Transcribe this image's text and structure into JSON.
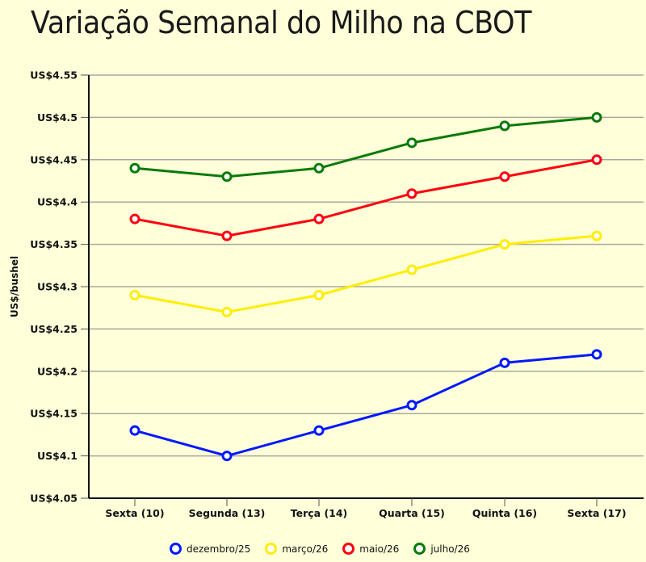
{
  "chart_data": {
    "type": "line",
    "title": "Variação Semanal do Milho na CBOT",
    "xlabel": "",
    "ylabel": "US$/bushel",
    "categories": [
      "Sexta (10)",
      "Segunda (13)",
      "Terça (14)",
      "Quarta (15)",
      "Quinta (16)",
      "Sexta (17)"
    ],
    "ylim": [
      4.05,
      4.55
    ],
    "yticks": [
      4.05,
      4.1,
      4.15,
      4.2,
      4.25,
      4.3,
      4.35,
      4.4,
      4.45,
      4.5,
      4.55
    ],
    "ytick_labels": [
      "US$4.05",
      "US$4.1",
      "US$4.15",
      "US$4.2",
      "US$4.25",
      "US$4.3",
      "US$4.35",
      "US$4.4",
      "US$4.45",
      "US$4.5",
      "US$4.55"
    ],
    "grid": true,
    "legend_position": "bottom",
    "series": [
      {
        "name": "dezembro/25",
        "color": "#0018ff",
        "values": [
          4.13,
          4.1,
          4.13,
          4.16,
          4.21,
          4.22
        ]
      },
      {
        "name": "março/26",
        "color": "#ffee00",
        "values": [
          4.29,
          4.27,
          4.29,
          4.32,
          4.35,
          4.36
        ]
      },
      {
        "name": "maio/26",
        "color": "#ff0010",
        "values": [
          4.38,
          4.36,
          4.38,
          4.41,
          4.43,
          4.45
        ]
      },
      {
        "name": "julho/26",
        "color": "#0a7a0a",
        "values": [
          4.44,
          4.43,
          4.44,
          4.47,
          4.49,
          4.5
        ]
      }
    ]
  },
  "colors": {
    "background": "#ffffd9",
    "gridline": "#a8a8a0",
    "axis": "#111111"
  }
}
